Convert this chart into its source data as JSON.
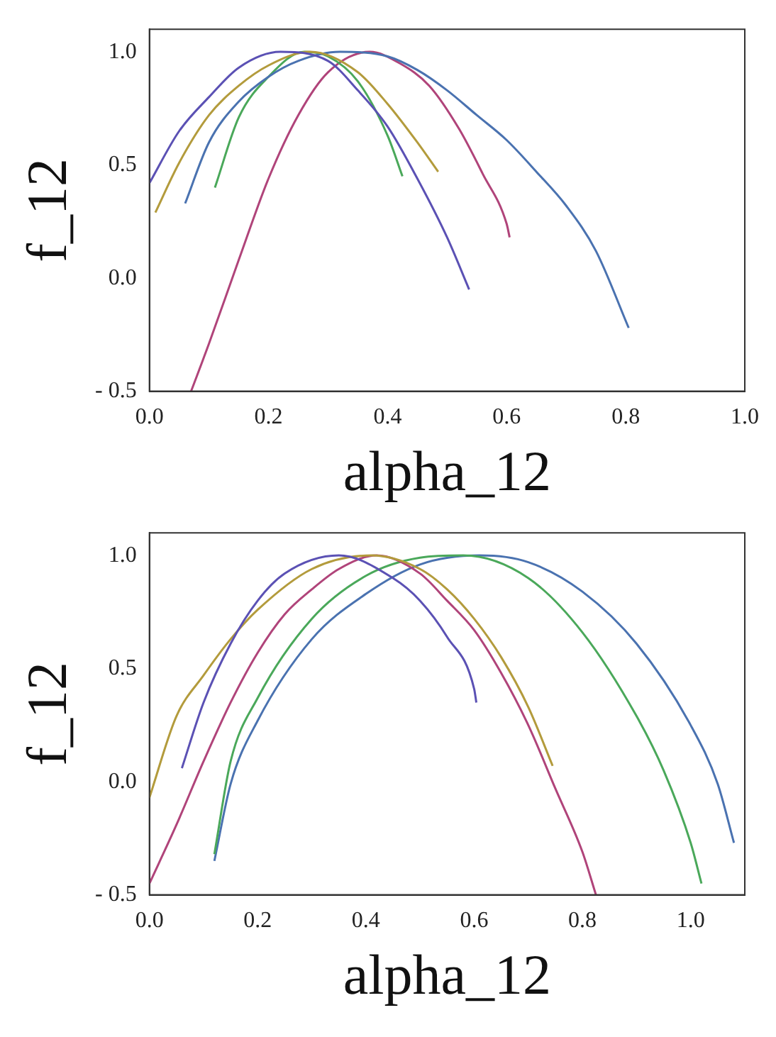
{
  "chart_data": [
    {
      "type": "line",
      "xlabel": "alpha_12",
      "ylabel": "f_12",
      "xlim": [
        0,
        1
      ],
      "ylim": [
        -0.5,
        1.1
      ],
      "xticks": [
        {
          "value": 0,
          "label": "0.0"
        },
        {
          "value": 0.2,
          "label": "0.2"
        },
        {
          "value": 0.4,
          "label": "0.4"
        },
        {
          "value": 0.6,
          "label": "0.6"
        },
        {
          "value": 0.8,
          "label": "0.8"
        },
        {
          "value": 1,
          "label": "1.0"
        }
      ],
      "yticks": [
        {
          "value": -0.5,
          "label": "- 0.5"
        },
        {
          "value": 0,
          "label": "0.0"
        },
        {
          "value": 0.5,
          "label": "0.5"
        },
        {
          "value": 1,
          "label": "1.0"
        }
      ],
      "series": [
        {
          "color": "#5b51b4",
          "x": [
            0,
            0.05,
            0.1,
            0.15,
            0.22,
            0.3,
            0.35,
            0.4,
            0.45,
            0.5,
            0.537
          ],
          "values": [
            0.42,
            0.65,
            0.8,
            0.93,
            1.0,
            0.96,
            0.83,
            0.67,
            0.44,
            0.18,
            -0.05
          ]
        },
        {
          "color": "#b39b3c",
          "x": [
            0.01,
            0.05,
            0.1,
            0.15,
            0.2,
            0.27,
            0.35,
            0.4,
            0.45,
            0.485
          ],
          "values": [
            0.29,
            0.51,
            0.72,
            0.85,
            0.94,
            1.0,
            0.91,
            0.77,
            0.6,
            0.47
          ]
        },
        {
          "color": "#4a72b0",
          "x": [
            0.06,
            0.1,
            0.15,
            0.2,
            0.25,
            0.32,
            0.4,
            0.45,
            0.5,
            0.55,
            0.6,
            0.65,
            0.7,
            0.75,
            0.805
          ],
          "values": [
            0.33,
            0.6,
            0.78,
            0.89,
            0.96,
            1.0,
            0.98,
            0.92,
            0.83,
            0.72,
            0.61,
            0.47,
            0.32,
            0.12,
            -0.22
          ]
        },
        {
          "color": "#4aa85a",
          "x": [
            0.11,
            0.15,
            0.2,
            0.26,
            0.3,
            0.35,
            0.4,
            0.425
          ],
          "values": [
            0.4,
            0.71,
            0.89,
            1.0,
            0.98,
            0.87,
            0.63,
            0.45
          ]
        },
        {
          "color": "#b0447a",
          "x": [
            0.07,
            0.1,
            0.15,
            0.2,
            0.25,
            0.3,
            0.37,
            0.42,
            0.47,
            0.52,
            0.56,
            0.6,
            0.605
          ],
          "values": [
            -0.5,
            -0.29,
            0.08,
            0.44,
            0.72,
            0.91,
            1.0,
            0.95,
            0.85,
            0.66,
            0.46,
            0.24,
            0.18
          ]
        }
      ]
    },
    {
      "type": "line",
      "xlabel": "alpha_12",
      "ylabel": "f_12",
      "xlim": [
        0,
        1.1
      ],
      "ylim": [
        -0.5,
        1.1
      ],
      "xticks": [
        {
          "value": 0,
          "label": "0.0"
        },
        {
          "value": 0.2,
          "label": "0.2"
        },
        {
          "value": 0.4,
          "label": "0.4"
        },
        {
          "value": 0.6,
          "label": "0.6"
        },
        {
          "value": 0.8,
          "label": "0.8"
        },
        {
          "value": 1,
          "label": "1.0"
        }
      ],
      "yticks": [
        {
          "value": -0.5,
          "label": "- 0.5"
        },
        {
          "value": 0,
          "label": "0.0"
        },
        {
          "value": 0.5,
          "label": "0.5"
        },
        {
          "value": 1,
          "label": "1.0"
        }
      ],
      "series": [
        {
          "color": "#5b51b4",
          "x": [
            0.06,
            0.1,
            0.15,
            0.2,
            0.25,
            0.35,
            0.45,
            0.5,
            0.55,
            0.6,
            0.604
          ],
          "values": [
            0.06,
            0.35,
            0.61,
            0.8,
            0.92,
            1.0,
            0.9,
            0.8,
            0.64,
            0.41,
            0.35
          ]
        },
        {
          "color": "#b39b3c",
          "x": [
            0,
            0.05,
            0.1,
            0.15,
            0.2,
            0.3,
            0.41,
            0.5,
            0.55,
            0.6,
            0.65,
            0.7,
            0.745
          ],
          "values": [
            -0.07,
            0.29,
            0.47,
            0.63,
            0.76,
            0.94,
            1.0,
            0.94,
            0.85,
            0.72,
            0.55,
            0.33,
            0.07
          ]
        },
        {
          "color": "#b0447a",
          "x": [
            0,
            0.05,
            0.1,
            0.15,
            0.2,
            0.25,
            0.3,
            0.35,
            0.42,
            0.5,
            0.55,
            0.6,
            0.65,
            0.7,
            0.75,
            0.8,
            0.825
          ],
          "values": [
            -0.45,
            -0.19,
            0.09,
            0.35,
            0.57,
            0.74,
            0.85,
            0.94,
            1.0,
            0.92,
            0.8,
            0.67,
            0.48,
            0.25,
            -0.03,
            -0.31,
            -0.5
          ]
        },
        {
          "color": "#4aa85a",
          "x": [
            0.12,
            0.15,
            0.2,
            0.3,
            0.4,
            0.5,
            0.58,
            0.7,
            0.8,
            0.9,
            0.95,
            1.0,
            1.02
          ],
          "values": [
            -0.32,
            0.09,
            0.37,
            0.72,
            0.91,
            0.99,
            1.0,
            0.9,
            0.66,
            0.29,
            0.05,
            -0.27,
            -0.45
          ]
        },
        {
          "color": "#4a72b0",
          "x": [
            0.12,
            0.15,
            0.2,
            0.3,
            0.4,
            0.5,
            0.61,
            0.7,
            0.8,
            0.9,
            1.0,
            1.05,
            1.08
          ],
          "values": [
            -0.35,
            -0.01,
            0.27,
            0.63,
            0.83,
            0.96,
            1.0,
            0.97,
            0.84,
            0.61,
            0.25,
            -0.01,
            -0.27
          ]
        }
      ]
    }
  ]
}
